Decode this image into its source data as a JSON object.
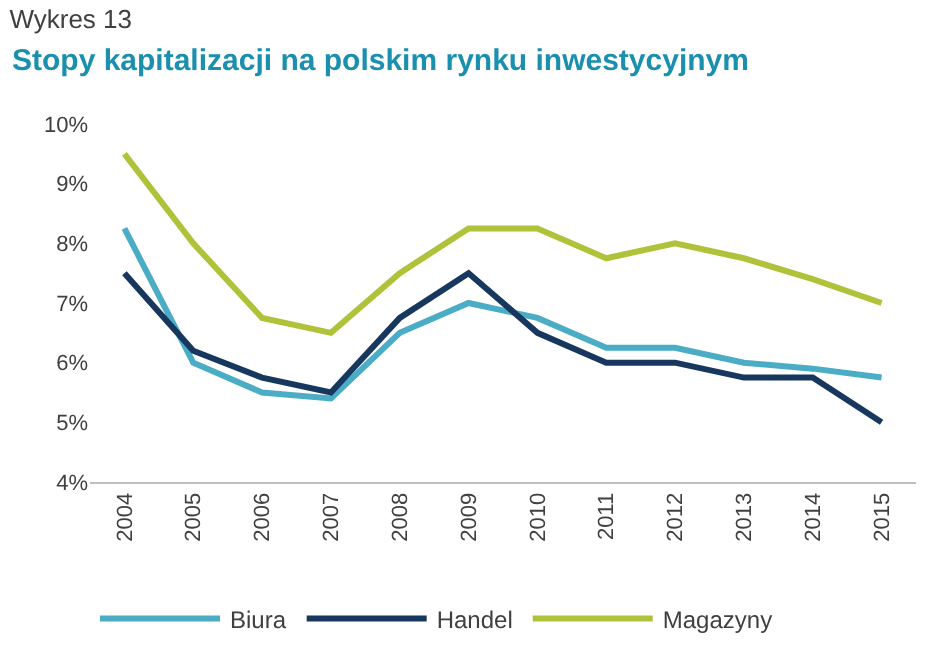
{
  "chart_data": {
    "type": "line",
    "title": "Wykres 13",
    "subtitle": "Stopy kapitalizacji na polskim rynku inwestycyjnym",
    "categories": [
      "2004",
      "2005",
      "2006",
      "2007",
      "2008",
      "2009",
      "2010",
      "2011",
      "2012",
      "2013",
      "2014",
      "2015"
    ],
    "series": [
      {
        "name": "Biura",
        "color": "#4bacc6",
        "values": [
          8.25,
          6.0,
          5.5,
          5.4,
          6.5,
          7.0,
          6.75,
          6.25,
          6.25,
          6.0,
          5.9,
          5.75
        ]
      },
      {
        "name": "Handel",
        "color": "#17375e",
        "values": [
          7.5,
          6.2,
          5.75,
          5.5,
          6.75,
          7.5,
          6.5,
          6.0,
          6.0,
          5.75,
          5.75,
          5.0
        ]
      },
      {
        "name": "Magazyny",
        "color": "#b0c23a",
        "values": [
          9.5,
          8.0,
          6.75,
          6.5,
          7.5,
          8.25,
          8.25,
          7.75,
          8.0,
          7.75,
          7.4,
          7.0
        ]
      }
    ],
    "ylim": [
      4,
      10
    ],
    "yticks": [
      {
        "value": 4,
        "label": "4%"
      },
      {
        "value": 5,
        "label": "5%"
      },
      {
        "value": 6,
        "label": "6%"
      },
      {
        "value": 7,
        "label": "7%"
      },
      {
        "value": 8,
        "label": "8%"
      },
      {
        "value": 9,
        "label": "9%"
      },
      {
        "value": 10,
        "label": "10%"
      }
    ],
    "grid": false,
    "legend": "bottom",
    "marker": "none",
    "line_style": "solid"
  }
}
